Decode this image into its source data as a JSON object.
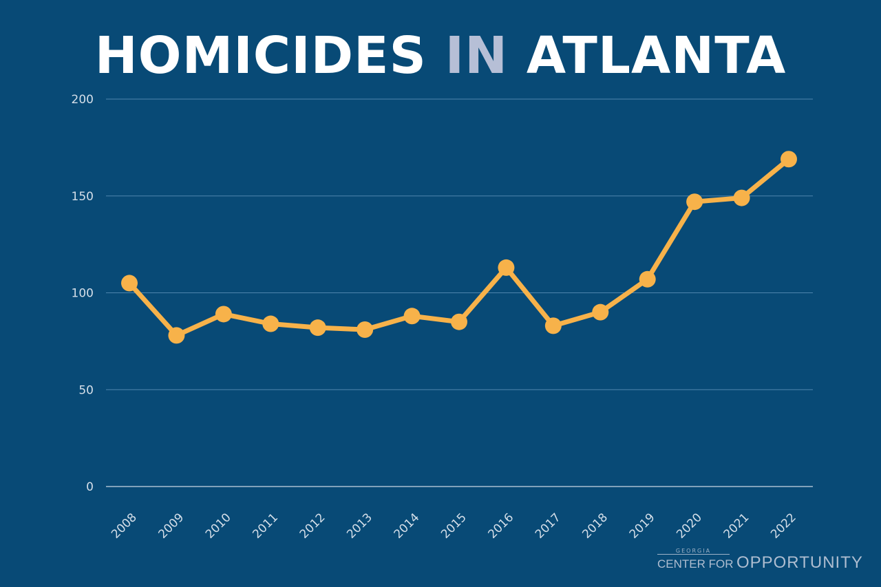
{
  "title": {
    "part1": "HOMICIDES",
    "part2": "IN",
    "part3": "ATLANTA"
  },
  "colors": {
    "background": "#084a76",
    "line": "#f7b24a",
    "grid": "#4f86ad",
    "title_accent": "#b6bfd6"
  },
  "logo": {
    "top": "GEORGIA",
    "left": "CENTER FOR",
    "right": "OPPORTUNITY"
  },
  "chart_data": {
    "type": "line",
    "title": "HOMICIDES IN ATLANTA",
    "xlabel": "",
    "ylabel": "",
    "ylim": [
      0,
      200
    ],
    "yticks": [
      0,
      50,
      100,
      150,
      200
    ],
    "grid": true,
    "categories": [
      "2008",
      "2009",
      "2010",
      "2011",
      "2012",
      "2013",
      "2014",
      "2015",
      "2016",
      "2017",
      "2018",
      "2019",
      "2020",
      "2021",
      "2022"
    ],
    "series": [
      {
        "values": [
          105,
          78,
          89,
          84,
          82,
          81,
          88,
          85,
          113,
          83,
          90,
          107,
          147,
          149,
          169
        ]
      }
    ]
  }
}
